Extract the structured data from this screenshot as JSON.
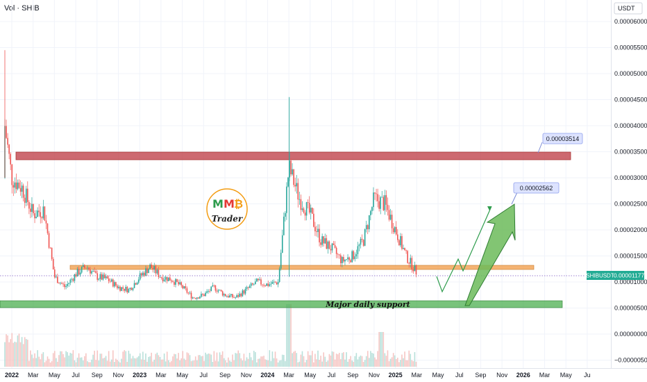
{
  "header": {
    "symbol_label": "Vol · SHIB",
    "currency_label": "USDT"
  },
  "price_axis": {
    "ticks": [
      "0.00006000",
      "0.00005500",
      "0.00005000",
      "0.00004500",
      "0.00004000",
      "0.00003500",
      "0.00003000",
      "0.00002500",
      "0.00002000",
      "0.00001500",
      "0.00001000",
      "0.00000500",
      "0.00000000",
      "−0.00000500"
    ],
    "current_symbol": "SHIBUSDT",
    "current_price": "0.00001177"
  },
  "time_axis": {
    "ticks": [
      "2022",
      "Mar",
      "May",
      "Jul",
      "Sep",
      "Nov",
      "2023",
      "Mar",
      "May",
      "Jul",
      "Sep",
      "Nov",
      "2024",
      "Mar",
      "May",
      "Jul",
      "Sep",
      "Nov",
      "2025",
      "Mar",
      "May",
      "Jul",
      "Sep",
      "Nov",
      "2026",
      "Mar",
      "May",
      "Ju"
    ]
  },
  "annotations": {
    "target_high": "0.00003514",
    "target_mid": "0.00002562",
    "support_label": "Major daily support"
  },
  "logo": {
    "letters": [
      "M",
      "M",
      "₿"
    ],
    "word": "Trader"
  },
  "colors": {
    "up": "#26a69a",
    "down": "#ef5350",
    "resistance_zone": "#c0444c",
    "mid_zone": "#f2a65a",
    "support_zone": "#4caf50",
    "label_bg": "#dde3ff",
    "current_price_bg": "#22ab94"
  },
  "chart_data": {
    "type": "candlestick",
    "y_unit": "USDT",
    "ylim": [
      -5e-06,
      6e-05
    ],
    "x_range": [
      "2022-01",
      "2026-07"
    ],
    "zones": [
      {
        "name": "resistance",
        "low": 3.3e-05,
        "high": 3.45e-05
      },
      {
        "name": "mid",
        "low": 1.28e-05,
        "high": 1.35e-05
      },
      {
        "name": "support",
        "low": 5.9e-06,
        "high": 6.9e-06
      }
    ],
    "close_path": [
      [
        "2022-01",
        3e-05
      ],
      [
        "2022-02",
        2.8e-05
      ],
      [
        "2022-03",
        2.3e-05
      ],
      [
        "2022-04",
        2.4e-05
      ],
      [
        "2022-05",
        1.1e-05
      ],
      [
        "2022-06",
        9e-06
      ],
      [
        "2022-07",
        1.15e-05
      ],
      [
        "2022-08",
        1.3e-05
      ],
      [
        "2022-09",
        1.1e-05
      ],
      [
        "2022-10",
        1.05e-05
      ],
      [
        "2022-11",
        9e-06
      ],
      [
        "2022-12",
        8.5e-06
      ],
      [
        "2023-01",
        1.1e-05
      ],
      [
        "2023-02",
        1.3e-05
      ],
      [
        "2023-03",
        1.1e-05
      ],
      [
        "2023-04",
        1.05e-05
      ],
      [
        "2023-05",
        9e-06
      ],
      [
        "2023-06",
        7e-06
      ],
      [
        "2023-07",
        7.5e-06
      ],
      [
        "2023-08",
        9e-06
      ],
      [
        "2023-09",
        7.5e-06
      ],
      [
        "2023-10",
        7e-06
      ],
      [
        "2023-11",
        8.5e-06
      ],
      [
        "2023-12",
        1e-05
      ],
      [
        "2024-01",
        9.5e-06
      ],
      [
        "2024-02",
        1e-05
      ],
      [
        "2024-03",
        3.2e-05
      ],
      [
        "2024-04",
        2.6e-05
      ],
      [
        "2024-05",
        2.3e-05
      ],
      [
        "2024-06",
        1.8e-05
      ],
      [
        "2024-07",
        1.65e-05
      ],
      [
        "2024-08",
        1.4e-05
      ],
      [
        "2024-09",
        1.5e-05
      ],
      [
        "2024-10",
        1.8e-05
      ],
      [
        "2024-11",
        2.6e-05
      ],
      [
        "2024-12",
        2.5e-05
      ],
      [
        "2025-01",
        2e-05
      ],
      [
        "2025-02",
        1.5e-05
      ],
      [
        "2025-03",
        1.18e-05
      ]
    ],
    "projection_path": [
      [
        "2025-03-15",
        1.18e-05
      ],
      [
        "2025-04-10",
        9e-06
      ],
      [
        "2025-05-05",
        1.5e-05
      ],
      [
        "2025-05-25",
        1.2e-05
      ],
      [
        "2025-07-15",
        2.5e-05
      ]
    ]
  }
}
